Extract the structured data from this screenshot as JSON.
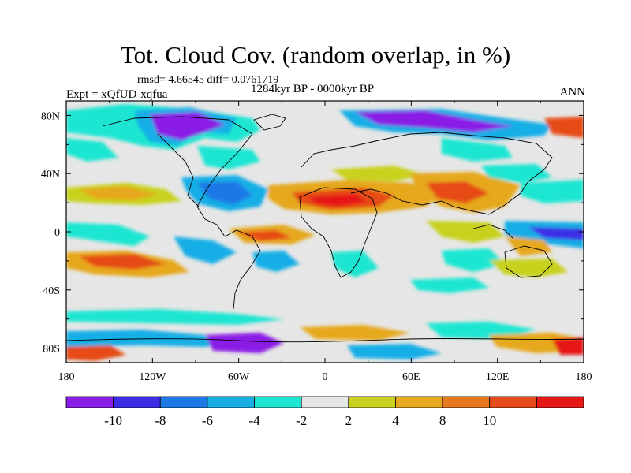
{
  "chart_data": {
    "type": "map",
    "title": "Tot. Cloud Cov. (random overlap, in %)",
    "stats": "rmsd= 4.66545 diff= 0.0761719",
    "experiment": "Expt = xQfUD-xqfua",
    "period": "1284kyr BP - 0000kyr BP",
    "season": "ANN",
    "x_tick_labels": [
      "180",
      "120W",
      "60W",
      "0",
      "60E",
      "120E",
      "180"
    ],
    "y_tick_labels": [
      "80N",
      "40N",
      "0",
      "40S",
      "80S"
    ],
    "colorbar": {
      "labels": [
        "-10",
        "-8",
        "-6",
        "-4",
        "-2",
        "2",
        "4",
        "8",
        "10"
      ],
      "colors": [
        "#8b1ee6",
        "#3b2de6",
        "#1e78e6",
        "#19aee6",
        "#1ee6d2",
        "#e6e6e6",
        "#c8d21e",
        "#e6a81e",
        "#e6781e",
        "#e64b19",
        "#e61919"
      ]
    },
    "background_color": "#e6e6e6"
  }
}
